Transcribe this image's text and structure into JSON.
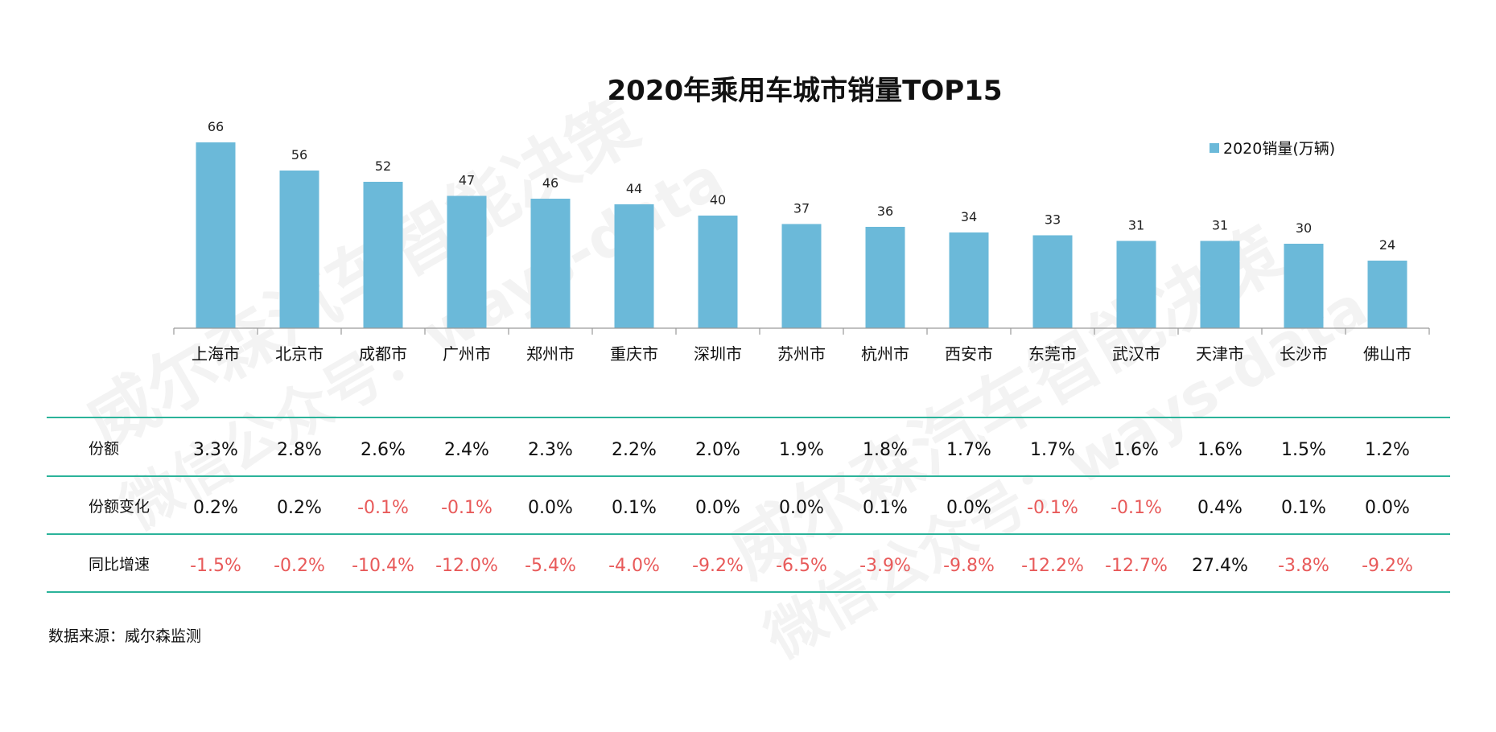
{
  "chart_data": {
    "type": "bar",
    "title": "2020年乘用车城市销量TOP15",
    "categories": [
      "上海市",
      "北京市",
      "成都市",
      "广州市",
      "郑州市",
      "重庆市",
      "深圳市",
      "苏州市",
      "杭州市",
      "西安市",
      "东莞市",
      "武汉市",
      "天津市",
      "长沙市",
      "佛山市"
    ],
    "series": [
      {
        "name": "2020销量(万辆)",
        "values": [
          66,
          56,
          52,
          47,
          46,
          44,
          40,
          37,
          36,
          34,
          33,
          31,
          31,
          30,
          24
        ]
      }
    ],
    "ylim": [
      0,
      70
    ],
    "xlabel": "",
    "ylabel": "",
    "grid": false,
    "legend_position": "top-right",
    "bar_color": "#6bb9d9"
  },
  "table": {
    "line_color": "#2bb39a",
    "negative_color": "#e85a5a",
    "rows": [
      {
        "label": "份额",
        "values": [
          "3.3%",
          "2.8%",
          "2.6%",
          "2.4%",
          "2.3%",
          "2.2%",
          "2.0%",
          "1.9%",
          "1.8%",
          "1.7%",
          "1.7%",
          "1.6%",
          "1.6%",
          "1.5%",
          "1.2%"
        ]
      },
      {
        "label": "份额变化",
        "values": [
          "0.2%",
          "0.2%",
          "-0.1%",
          "-0.1%",
          "0.0%",
          "0.1%",
          "0.0%",
          "0.0%",
          "0.1%",
          "0.0%",
          "-0.1%",
          "-0.1%",
          "0.4%",
          "0.1%",
          "0.0%"
        ]
      },
      {
        "label": "同比增速",
        "values": [
          "-1.5%",
          "-0.2%",
          "-10.4%",
          "-12.0%",
          "-5.4%",
          "-4.0%",
          "-9.2%",
          "-6.5%",
          "-3.9%",
          "-9.8%",
          "-12.2%",
          "-12.7%",
          "27.4%",
          "-3.8%",
          "-9.2%"
        ]
      }
    ]
  },
  "source": "数据来源：威尔森监测",
  "watermark": {
    "line1": "威尔森汽车智能决策",
    "line2": "微信公众号：ways-data"
  }
}
